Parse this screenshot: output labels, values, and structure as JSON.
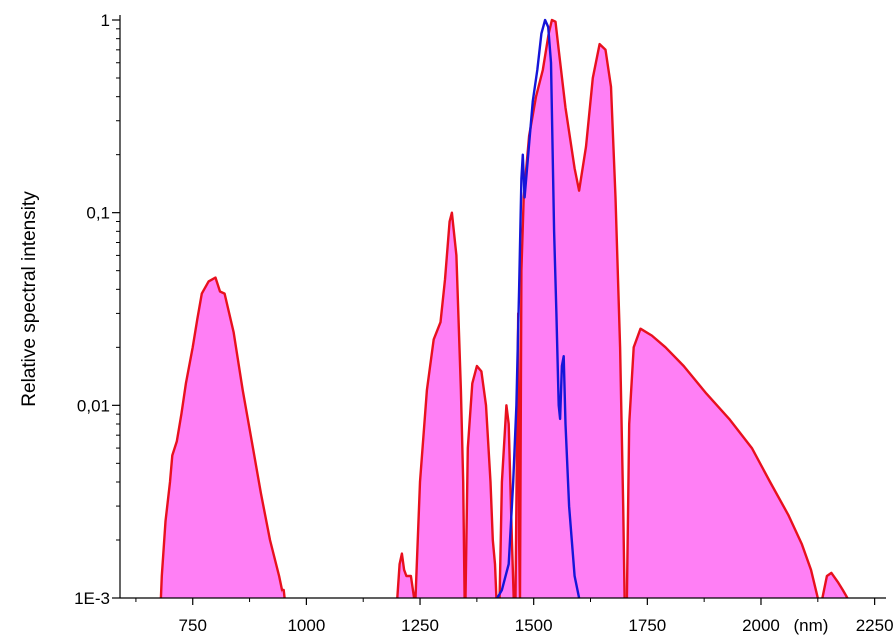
{
  "chart_data": {
    "type": "area",
    "xlabel": "(nm)",
    "ylabel": "Relative spectral intensity",
    "y_scale": "log",
    "xlim": [
      590,
      2275
    ],
    "ylim": [
      0.001,
      1
    ],
    "xticks": [
      750,
      1000,
      1250,
      1500,
      1750,
      2000,
      2250
    ],
    "xtick_labels": [
      "750",
      "1000",
      "1250",
      "1500",
      "1750",
      "2000",
      "2250"
    ],
    "yticks": [
      0.001,
      0.01,
      0.1,
      1
    ],
    "ytick_labels": [
      "1E-3",
      "0,01",
      "0,1",
      "1"
    ],
    "grid": false,
    "legend": "none",
    "series": [
      {
        "color": "#e8101e",
        "fill": "#ff7ff5",
        "points": [
          [
            680,
            0.001
          ],
          [
            682,
            0.0013
          ],
          [
            690,
            0.0025
          ],
          [
            700,
            0.004
          ],
          [
            705,
            0.0055
          ],
          [
            715,
            0.0065
          ],
          [
            725,
            0.009
          ],
          [
            735,
            0.013
          ],
          [
            750,
            0.02
          ],
          [
            760,
            0.028
          ],
          [
            770,
            0.038
          ],
          [
            785,
            0.044
          ],
          [
            800,
            0.046
          ],
          [
            810,
            0.039
          ],
          [
            820,
            0.038
          ],
          [
            840,
            0.024
          ],
          [
            860,
            0.012
          ],
          [
            880,
            0.0065
          ],
          [
            900,
            0.0035
          ],
          [
            920,
            0.002
          ],
          [
            940,
            0.0013
          ],
          [
            950,
            0.001
          ]
        ]
      },
      {
        "color": "#e8101e",
        "fill": "#ff7ff5",
        "points": [
          [
            945,
            0.0011
          ],
          [
            950,
            0.0011
          ],
          [
            952,
            0.001
          ]
        ]
      },
      {
        "color": "#e8101e",
        "fill": "#ff7ff5",
        "points": [
          [
            1200,
            0.001
          ],
          [
            1205,
            0.0015
          ],
          [
            1210,
            0.0017
          ],
          [
            1215,
            0.0014
          ],
          [
            1220,
            0.0013
          ],
          [
            1230,
            0.0013
          ],
          [
            1237,
            0.001
          ]
        ]
      },
      {
        "color": "#e8101e",
        "fill": "#ff7ff5",
        "points": [
          [
            1240,
            0.001
          ],
          [
            1250,
            0.004
          ],
          [
            1265,
            0.012
          ],
          [
            1280,
            0.022
          ],
          [
            1295,
            0.027
          ],
          [
            1305,
            0.045
          ],
          [
            1315,
            0.09
          ],
          [
            1320,
            0.1
          ],
          [
            1330,
            0.06
          ],
          [
            1340,
            0.012
          ],
          [
            1345,
            0.004
          ],
          [
            1348,
            0.001
          ]
        ]
      },
      {
        "color": "#e8101e",
        "fill": "#ff7ff5",
        "points": [
          [
            1350,
            0.001
          ],
          [
            1355,
            0.006
          ],
          [
            1365,
            0.013
          ],
          [
            1375,
            0.016
          ],
          [
            1385,
            0.015
          ],
          [
            1395,
            0.01
          ],
          [
            1405,
            0.004
          ],
          [
            1410,
            0.002
          ],
          [
            1415,
            0.0015
          ],
          [
            1418,
            0.001
          ]
        ]
      },
      {
        "color": "#e8101e",
        "fill": "#ff7ff5",
        "points": [
          [
            1425,
            0.001
          ],
          [
            1430,
            0.004
          ],
          [
            1440,
            0.01
          ],
          [
            1445,
            0.008
          ],
          [
            1452,
            0.002
          ],
          [
            1456,
            0.001
          ]
        ]
      },
      {
        "color": "#e8101e",
        "fill": "#ff7ff5",
        "points": [
          [
            1460,
            0.001
          ],
          [
            1466,
            0.03
          ],
          [
            1468,
            0.002
          ],
          [
            1470,
            0.001
          ],
          [
            1473,
            0.05
          ],
          [
            1478,
            0.12
          ],
          [
            1490,
            0.25
          ],
          [
            1505,
            0.4
          ],
          [
            1520,
            0.55
          ],
          [
            1533,
            0.85
          ],
          [
            1540,
            1.0
          ],
          [
            1548,
            0.98
          ],
          [
            1555,
            0.7
          ],
          [
            1570,
            0.35
          ],
          [
            1590,
            0.17
          ],
          [
            1600,
            0.13
          ],
          [
            1615,
            0.22
          ],
          [
            1630,
            0.5
          ],
          [
            1645,
            0.75
          ],
          [
            1658,
            0.7
          ],
          [
            1670,
            0.45
          ],
          [
            1680,
            0.12
          ],
          [
            1690,
            0.02
          ],
          [
            1697,
            0.003
          ],
          [
            1700,
            0.001
          ]
        ]
      },
      {
        "color": "#e8101e",
        "fill": "#ff7ff5",
        "points": [
          [
            1705,
            0.001
          ],
          [
            1710,
            0.008
          ],
          [
            1720,
            0.02
          ],
          [
            1735,
            0.025
          ],
          [
            1760,
            0.023
          ],
          [
            1790,
            0.02
          ],
          [
            1830,
            0.016
          ],
          [
            1880,
            0.0115
          ],
          [
            1930,
            0.0085
          ],
          [
            1980,
            0.006
          ],
          [
            2020,
            0.004
          ],
          [
            2060,
            0.0027
          ],
          [
            2090,
            0.0019
          ],
          [
            2110,
            0.0014
          ],
          [
            2125,
            0.001
          ]
        ]
      },
      {
        "color": "#e8101e",
        "fill": "#ff7ff5",
        "points": [
          [
            2135,
            0.001
          ],
          [
            2145,
            0.0013
          ],
          [
            2155,
            0.00135
          ],
          [
            2170,
            0.0012
          ],
          [
            2180,
            0.0011
          ],
          [
            2190,
            0.001
          ]
        ]
      },
      {
        "color": "#1515d9",
        "fill": "none",
        "points": [
          [
            1420,
            0.001
          ],
          [
            1430,
            0.0011
          ],
          [
            1445,
            0.0015
          ],
          [
            1455,
            0.004
          ],
          [
            1462,
            0.01
          ],
          [
            1468,
            0.04
          ],
          [
            1473,
            0.15
          ],
          [
            1476,
            0.2
          ],
          [
            1480,
            0.12
          ],
          [
            1488,
            0.2
          ],
          [
            1498,
            0.38
          ],
          [
            1508,
            0.55
          ],
          [
            1517,
            0.85
          ],
          [
            1525,
            1.0
          ],
          [
            1532,
            0.92
          ],
          [
            1538,
            0.6
          ],
          [
            1545,
            0.08
          ],
          [
            1550,
            0.03
          ],
          [
            1555,
            0.01
          ],
          [
            1558,
            0.0085
          ],
          [
            1562,
            0.016
          ],
          [
            1566,
            0.018
          ],
          [
            1570,
            0.008
          ],
          [
            1578,
            0.003
          ],
          [
            1590,
            0.0013
          ],
          [
            1600,
            0.001
          ]
        ]
      }
    ]
  }
}
